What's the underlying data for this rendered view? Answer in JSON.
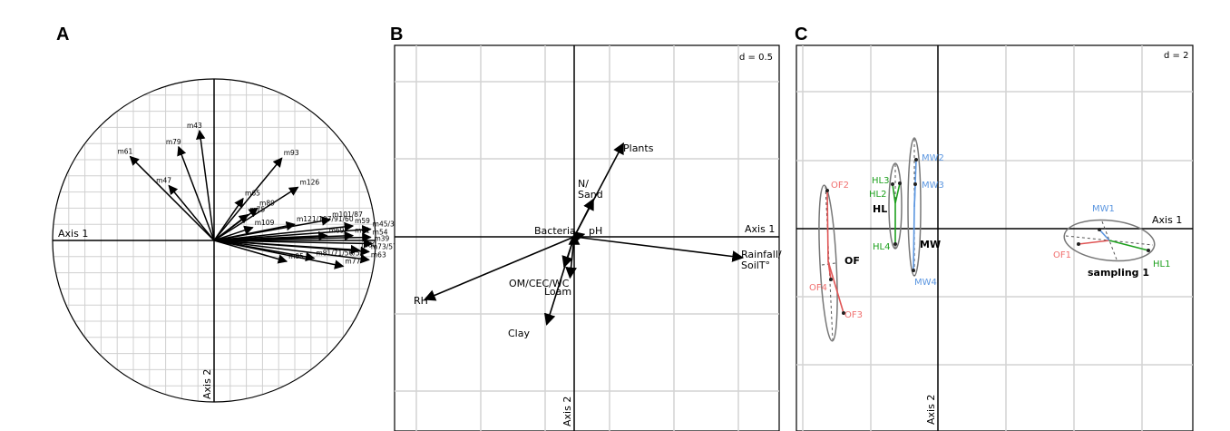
{
  "chart_data": [
    {
      "type": "scatter",
      "panel": "A",
      "axis1_label": "Axis 1",
      "axis2_label": "Axis 2",
      "xlim": [
        -1,
        1
      ],
      "ylim": [
        -1,
        1
      ],
      "grid": true,
      "arrows": [
        {
          "label": "m61",
          "x": -0.52,
          "y": 0.52
        },
        {
          "label": "m79",
          "x": -0.22,
          "y": 0.58
        },
        {
          "label": "m43",
          "x": -0.09,
          "y": 0.68
        },
        {
          "label": "m47",
          "x": -0.28,
          "y": 0.34
        },
        {
          "label": "m65",
          "x": 0.18,
          "y": 0.26
        },
        {
          "label": "m93",
          "x": 0.42,
          "y": 0.51
        },
        {
          "label": "m89",
          "x": 0.27,
          "y": 0.2
        },
        {
          "label": "m126",
          "x": 0.52,
          "y": 0.33
        },
        {
          "label": "m75",
          "x": 0.21,
          "y": 0.16
        },
        {
          "label": "m109",
          "x": 0.24,
          "y": 0.08
        },
        {
          "label": "m121/107/91/60",
          "x": 0.5,
          "y": 0.1
        },
        {
          "label": "m101/87",
          "x": 0.72,
          "y": 0.13
        },
        {
          "label": "m59",
          "x": 0.86,
          "y": 0.09
        },
        {
          "label": "m45/33",
          "x": 0.97,
          "y": 0.07
        },
        {
          "label": "m69",
          "x": 0.7,
          "y": 0.03
        },
        {
          "label": "m41",
          "x": 0.86,
          "y": 0.03
        },
        {
          "label": "m54",
          "x": 0.97,
          "y": 0.02
        },
        {
          "label": "m39",
          "x": 0.98,
          "y": -0.02
        },
        {
          "label": "m60",
          "x": 0.9,
          "y": -0.06
        },
        {
          "label": "m73/57",
          "x": 0.96,
          "y": -0.07
        },
        {
          "label": "m81/71/56/51",
          "x": 0.62,
          "y": -0.11
        },
        {
          "label": "m95",
          "x": 0.45,
          "y": -0.13
        },
        {
          "label": "m77",
          "x": 0.8,
          "y": -0.16
        },
        {
          "label": "m63",
          "x": 0.96,
          "y": -0.12
        }
      ]
    },
    {
      "type": "scatter",
      "panel": "B",
      "axis1_label": "Axis 1",
      "axis2_label": "Axis 2",
      "scale_label": "d = 0.5",
      "grid": true,
      "arrows": [
        {
          "label": "Plants",
          "x": 0.59,
          "y": 1.12
        },
        {
          "label": "N/",
          "label2": "Sand",
          "x": 0.23,
          "y": 0.45
        },
        {
          "label": "pH",
          "x": 0.12,
          "y": 0.03
        },
        {
          "label": "Bacteria",
          "x": 0.0,
          "y": 0.03
        },
        {
          "label": "Rainfall/",
          "label2": "SoilT°",
          "x": 2.02,
          "y": -0.25
        },
        {
          "label": "RH",
          "x": -1.79,
          "y": -0.75
        },
        {
          "label": "OM/CEC/WC",
          "x": -0.12,
          "y": -0.36
        },
        {
          "label": "Loam",
          "x": -0.05,
          "y": -0.49
        },
        {
          "label": "Clay",
          "x": -0.33,
          "y": -1.05
        }
      ]
    },
    {
      "type": "scatter",
      "panel": "C",
      "axis1_label": "Axis 1",
      "axis2_label": "Axis 2",
      "scale_label": "d = 2",
      "grid": true,
      "groups": [
        {
          "name": "OF",
          "color": "#f0706f",
          "centroid": [
            -7.8,
            -0.7
          ],
          "points": [
            {
              "label": "OF1",
              "x": 7.5,
              "y": -0.5
            },
            {
              "label": "OF2",
              "x": -8.0,
              "y": 1.2
            },
            {
              "label": "OF3",
              "x": -7.4,
              "y": -2.5
            },
            {
              "label": "OF4",
              "x": -7.9,
              "y": -1.7
            }
          ]
        },
        {
          "name": "HL",
          "color": "#1ea01e",
          "centroid": [
            -1.8,
            0.4
          ],
          "points": [
            {
              "label": "HL1",
              "x": 11.5,
              "y": -0.6
            },
            {
              "label": "HL2",
              "x": -1.9,
              "y": 1.2
            },
            {
              "label": "HL3",
              "x": -2.1,
              "y": 1.4
            },
            {
              "label": "HL4",
              "x": -1.8,
              "y": -0.5
            }
          ]
        },
        {
          "name": "MW",
          "color": "#5b96e0",
          "centroid": [
            -1.0,
            0.3
          ],
          "points": [
            {
              "label": "MW1",
              "x": 9.6,
              "y": 0.1
            },
            {
              "label": "MW2",
              "x": -0.9,
              "y": 2.4
            },
            {
              "label": "MW3",
              "x": -0.95,
              "y": 1.4
            },
            {
              "label": "MW4",
              "x": -1.1,
              "y": -1.3
            }
          ]
        },
        {
          "name": "sampling 1",
          "color": "#555555",
          "centroid": [
            9.0,
            -0.4
          ]
        }
      ]
    }
  ],
  "panels": {
    "a": "A",
    "b": "B",
    "c": "C"
  }
}
